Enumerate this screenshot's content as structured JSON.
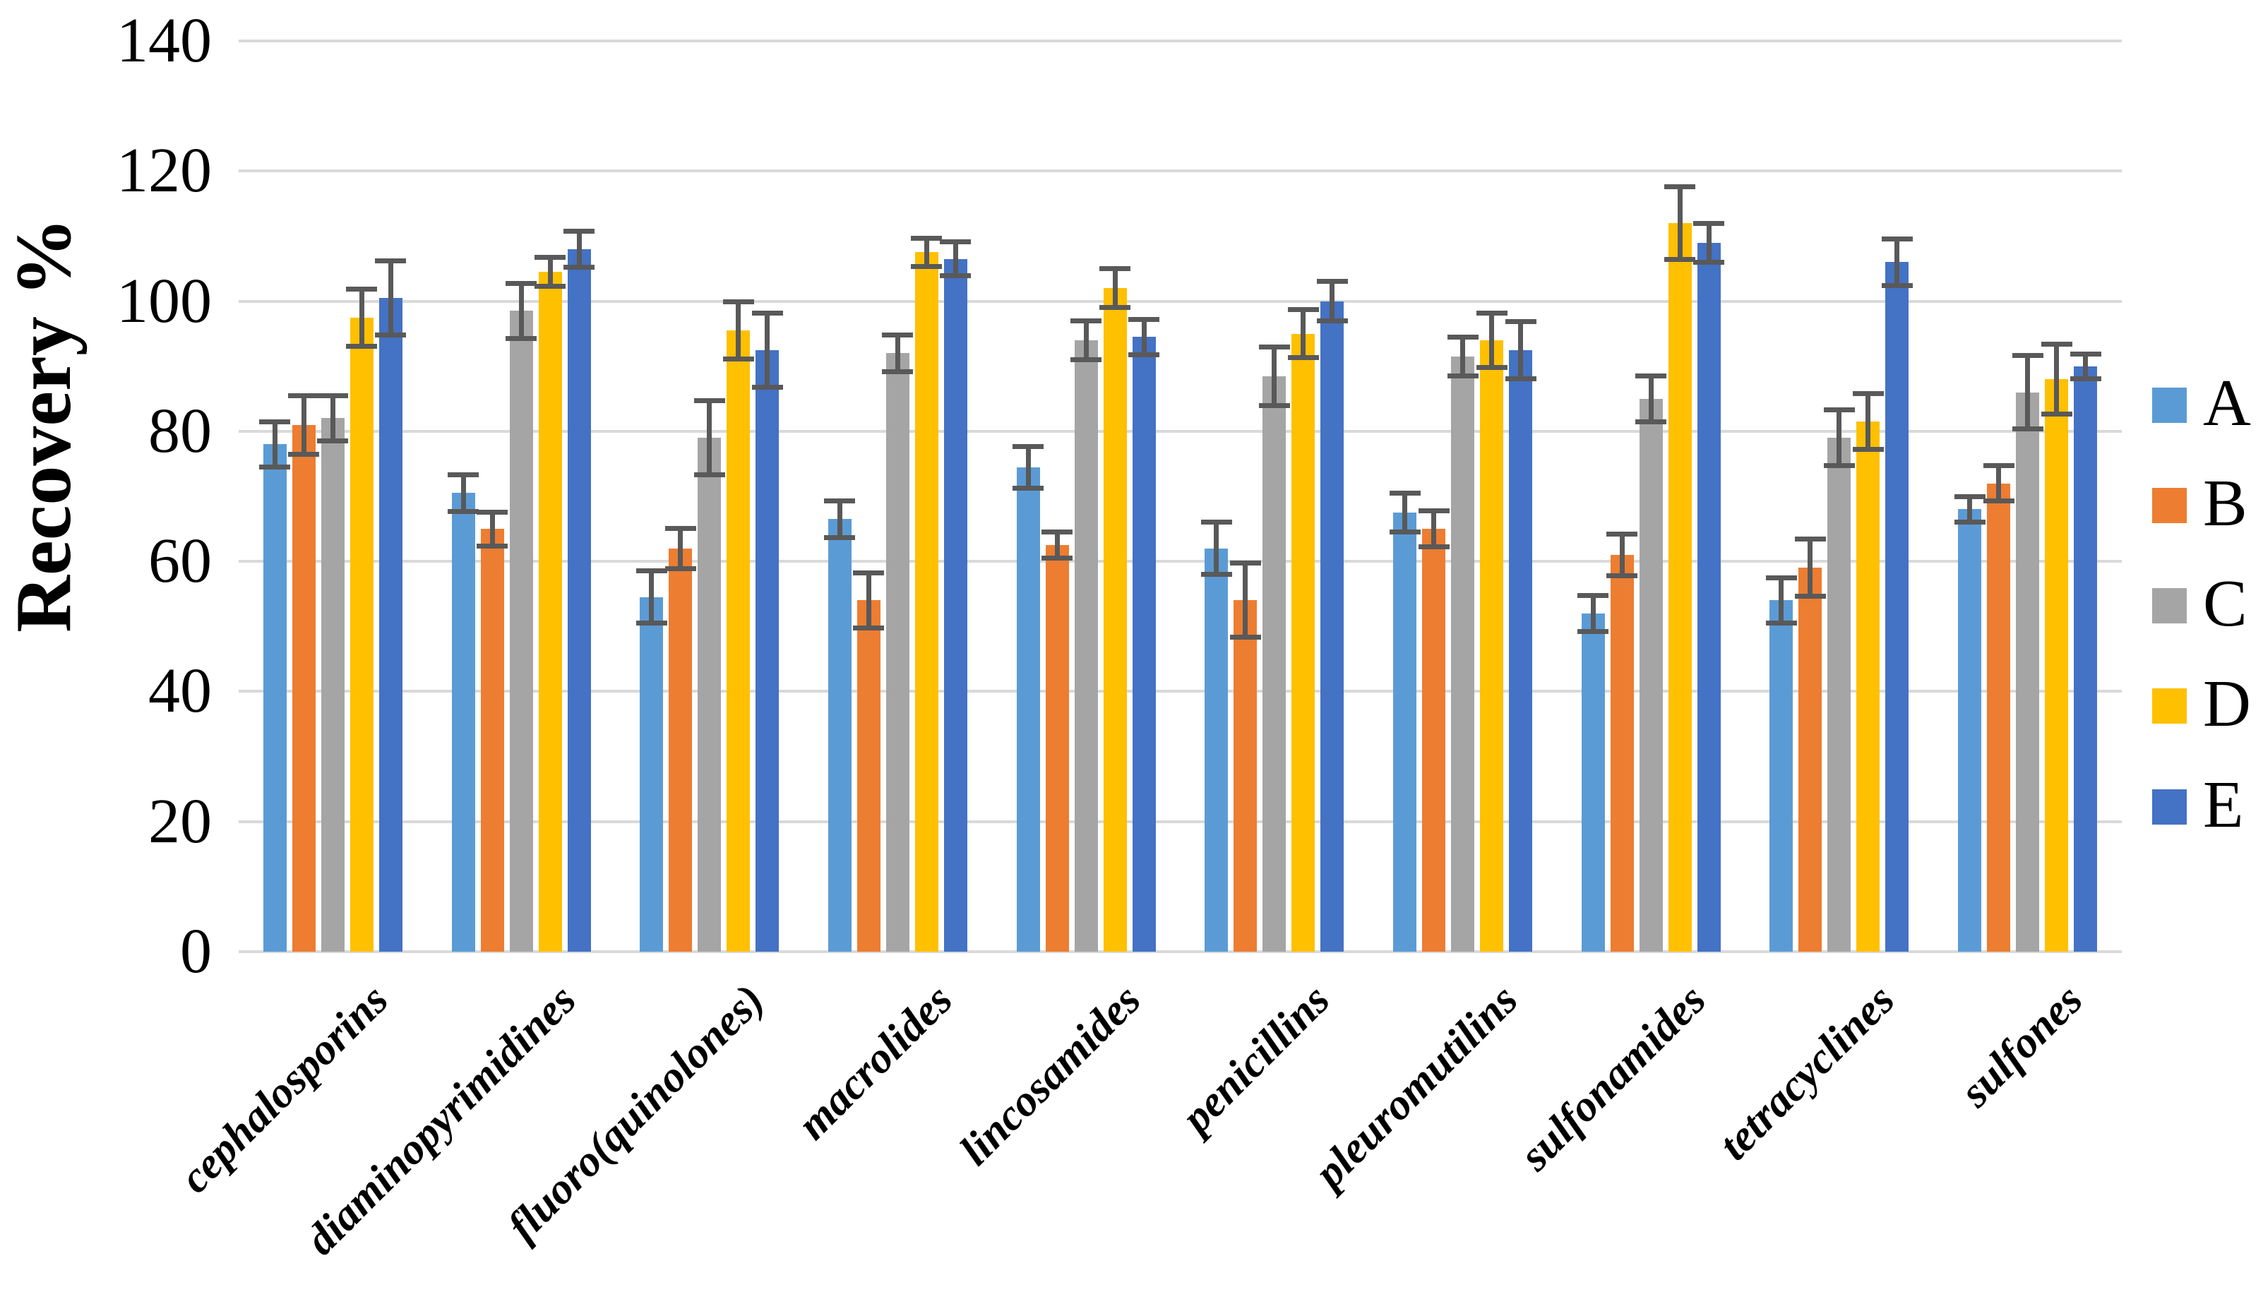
{
  "page": {
    "background": "#ffffff"
  },
  "chart_data": {
    "type": "bar",
    "title": "",
    "ylabel": "Recovery %",
    "xlabel": "",
    "ylim": [
      0,
      140
    ],
    "ytick_step": 20,
    "y_ticks": [
      "0",
      "20",
      "40",
      "60",
      "80",
      "100",
      "120",
      "140"
    ],
    "grid": true,
    "gridline_color": "#D9D9D9",
    "error_bar_color": "#595959",
    "legend_position": "right",
    "legend_entries": [
      "A",
      "B",
      "C",
      "D",
      "E"
    ],
    "categories": [
      "cephalosporins",
      "diaminopyrimidines",
      "fluoro(quinolones)",
      "macrolides",
      "lincosamides",
      "penicillins",
      "pleuromutilins",
      "sulfonamides",
      "tetracyclines",
      "sulfones"
    ],
    "series": [
      {
        "name": "A",
        "color": "#5B9BD5",
        "values": [
          78,
          70.5,
          54.5,
          66.5,
          74.5,
          62,
          67.5,
          52,
          54,
          68
        ],
        "errors": [
          3.5,
          2.8,
          4,
          2.8,
          3.2,
          4,
          3,
          2.8,
          3.5,
          2
        ]
      },
      {
        "name": "B",
        "color": "#ED7D31",
        "values": [
          81,
          65,
          62,
          54,
          62.5,
          54,
          65,
          61,
          59,
          72
        ],
        "errors": [
          4.5,
          2.6,
          3.1,
          4.2,
          2,
          5.7,
          2.8,
          3.2,
          4.4,
          2.7
        ]
      },
      {
        "name": "C",
        "color": "#A5A5A5",
        "values": [
          82,
          98.5,
          79,
          92,
          94,
          88.5,
          91.5,
          85,
          79,
          86
        ],
        "errors": [
          3.5,
          4.2,
          5.7,
          2.8,
          3,
          4.5,
          3,
          3.5,
          4.3,
          5.6
        ]
      },
      {
        "name": "D",
        "color": "#FFC000",
        "values": [
          97.5,
          104.5,
          95.5,
          107.5,
          102,
          95,
          94,
          112,
          81.5,
          88
        ],
        "errors": [
          4.4,
          2.2,
          4.4,
          2.2,
          3,
          3.7,
          4.2,
          5.6,
          4.3,
          5.4
        ]
      },
      {
        "name": "E",
        "color": "#4472C4",
        "values": [
          100.5,
          108,
          92.5,
          106.5,
          94.5,
          100,
          92.5,
          109,
          106,
          90
        ],
        "errors": [
          5.7,
          2.8,
          5.7,
          2.6,
          2.7,
          3,
          4.4,
          3,
          3.6,
          1.9
        ]
      }
    ]
  }
}
